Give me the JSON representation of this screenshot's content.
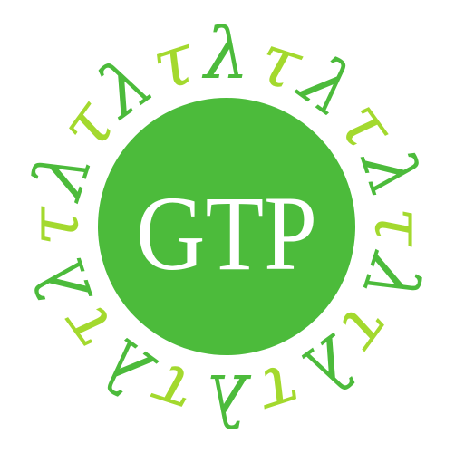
{
  "logo": {
    "monogram": "GTP",
    "monogram_letters": [
      "G",
      "T",
      "P"
    ],
    "ring_glyphs": [
      "λ",
      "τ"
    ],
    "ring_glyph_count": 20,
    "colors": {
      "disc": "#4cbb3b",
      "monogram": "#ffffff",
      "lambda": "#4cbb3b",
      "tau": "#a3d92e",
      "background": "#ffffff"
    }
  }
}
